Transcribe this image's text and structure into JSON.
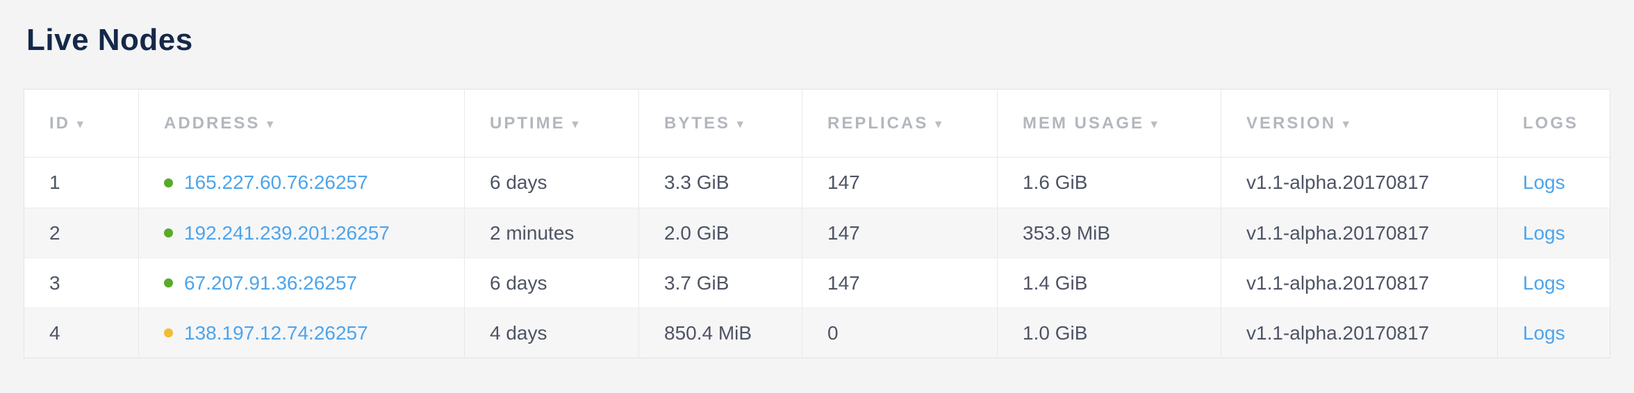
{
  "page": {
    "title": "Live Nodes",
    "background_color": "#f4f4f5",
    "title_color": "#152849"
  },
  "table": {
    "sort_arrow_glyph": "▾",
    "columns": [
      {
        "label": "ID",
        "sortable": true
      },
      {
        "label": "ADDRESS",
        "sortable": true
      },
      {
        "label": "UPTIME",
        "sortable": true
      },
      {
        "label": "BYTES",
        "sortable": true
      },
      {
        "label": "REPLICAS",
        "sortable": true
      },
      {
        "label": "MEM USAGE",
        "sortable": true
      },
      {
        "label": "VERSION",
        "sortable": true
      },
      {
        "label": "LOGS",
        "sortable": false
      }
    ],
    "colors": {
      "link_blue": "#4da4ea",
      "status_healthy_green": "#5aaa28",
      "status_warning_yellow": "#f2bc33"
    },
    "rows": [
      {
        "id": "1",
        "status": "healthy",
        "status_color": "#5aaa28",
        "address": "165.227.60.76:26257",
        "uptime": "6 days",
        "bytes": "3.3 GiB",
        "replicas": "147",
        "mem_usage": "1.6 GiB",
        "version": "v1.1-alpha.20170817",
        "logs_label": "Logs"
      },
      {
        "id": "2",
        "status": "healthy",
        "status_color": "#5aaa28",
        "address": "192.241.239.201:26257",
        "uptime": "2 minutes",
        "bytes": "2.0 GiB",
        "replicas": "147",
        "mem_usage": "353.9 MiB",
        "version": "v1.1-alpha.20170817",
        "logs_label": "Logs"
      },
      {
        "id": "3",
        "status": "healthy",
        "status_color": "#5aaa28",
        "address": "67.207.91.36:26257",
        "uptime": "6 days",
        "bytes": "3.7 GiB",
        "replicas": "147",
        "mem_usage": "1.4 GiB",
        "version": "v1.1-alpha.20170817",
        "logs_label": "Logs"
      },
      {
        "id": "4",
        "status": "warning",
        "status_color": "#f2bc33",
        "address": "138.197.12.74:26257",
        "uptime": "4 days",
        "bytes": "850.4 MiB",
        "replicas": "0",
        "mem_usage": "1.0 GiB",
        "version": "v1.1-alpha.20170817",
        "logs_label": "Logs"
      }
    ]
  }
}
